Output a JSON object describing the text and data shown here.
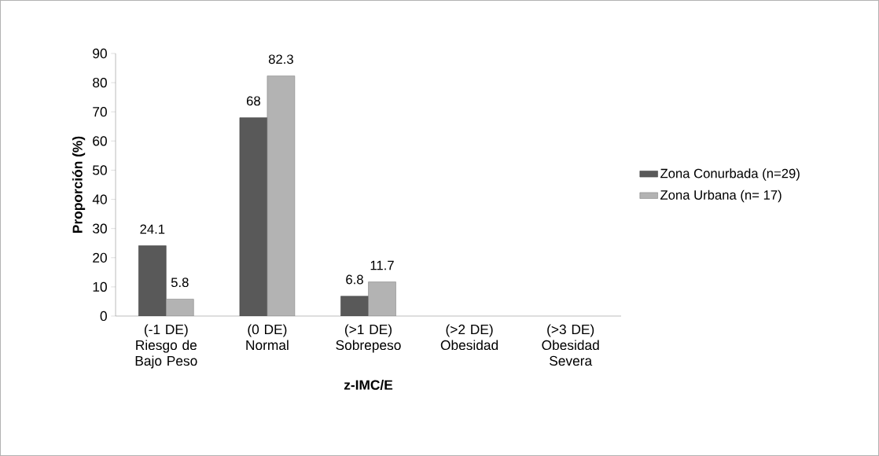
{
  "chart_data": {
    "type": "bar",
    "xlabel": "z-IMC/E",
    "ylabel": "Proporción (%)",
    "categories": [
      "(-1 DE) Riesgo de Bajo Peso",
      "(0 DE) Normal",
      "(>1 DE) Sobrepeso",
      "(>2 DE) Obesidad",
      "(>3 DE) Obesidad Severa"
    ],
    "series": [
      {
        "name": "Zona Conurbada (n=29)",
        "color": "#595959",
        "values": [
          24.1,
          68,
          6.8,
          null,
          null
        ]
      },
      {
        "name": "Zona Urbana (n= 17)",
        "color": "#b3b3b3",
        "values": [
          5.8,
          82.3,
          11.7,
          null,
          null
        ]
      }
    ],
    "ylim": [
      0,
      90
    ],
    "yticks": [
      0,
      10,
      20,
      30,
      40,
      50,
      60,
      70,
      80,
      90
    ],
    "data_labels": true,
    "legend": "right",
    "grid": false
  }
}
